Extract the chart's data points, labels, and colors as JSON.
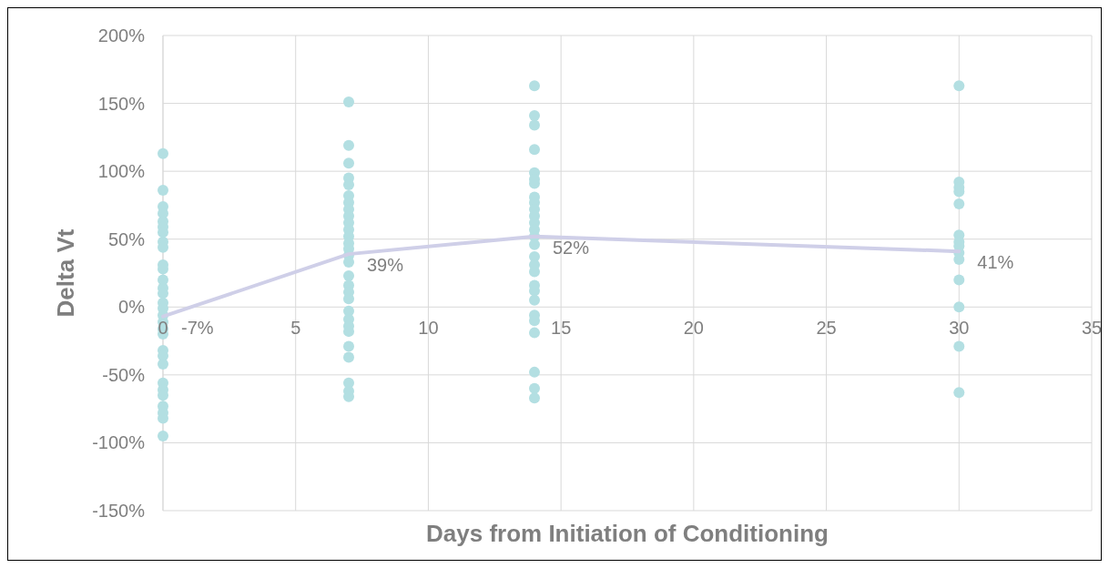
{
  "chart_data": {
    "type": "scatter",
    "xlabel": "Days from Initiation of Conditioning",
    "ylabel": "Delta Vt",
    "xlim": [
      0,
      35
    ],
    "xticks": [
      0,
      5,
      10,
      15,
      20,
      25,
      30,
      35
    ],
    "ylim": [
      -150,
      200
    ],
    "yticks": [
      {
        "value": -150,
        "label": "-150%"
      },
      {
        "value": -100,
        "label": "-100%"
      },
      {
        "value": -50,
        "label": "-50%"
      },
      {
        "value": 0,
        "label": "0%"
      },
      {
        "value": 50,
        "label": "50%"
      },
      {
        "value": 100,
        "label": "100%"
      },
      {
        "value": 150,
        "label": "150%"
      },
      {
        "value": 200,
        "label": "200%"
      }
    ],
    "grid": true,
    "series": [
      {
        "color": "#b3dfe2",
        "marker": "circle",
        "x": [
          0,
          0,
          0,
          0,
          0,
          0,
          0,
          0,
          0,
          0,
          0,
          0,
          0,
          0,
          0,
          0,
          0,
          0,
          0,
          0,
          0,
          0,
          0,
          0,
          0,
          0,
          0,
          0,
          0,
          0,
          7,
          7,
          7,
          7,
          7,
          7,
          7,
          7,
          7,
          7,
          7,
          7,
          7,
          7,
          7,
          7,
          7,
          7,
          7,
          7,
          7,
          7,
          7,
          7,
          7,
          7,
          7,
          7,
          7,
          14,
          14,
          14,
          14,
          14,
          14,
          14,
          14,
          14,
          14,
          14,
          14,
          14,
          14,
          14,
          14,
          14,
          14,
          14,
          14,
          14,
          14,
          14,
          14,
          14,
          14,
          14,
          30,
          30,
          30,
          30,
          30,
          30,
          30,
          30,
          30,
          30,
          30,
          30,
          30,
          30
        ],
        "values": [
          113,
          86,
          74,
          69,
          63,
          59,
          55,
          48,
          44,
          31,
          28,
          20,
          14,
          10,
          3,
          -1,
          -6,
          -11,
          -16,
          -20,
          -32,
          -36,
          -42,
          -56,
          -61,
          -65,
          -73,
          -78,
          -82,
          -95,
          151,
          119,
          106,
          95,
          90,
          82,
          77,
          72,
          67,
          62,
          57,
          52,
          47,
          43,
          38,
          33,
          23,
          16,
          11,
          6,
          -3,
          -9,
          -14,
          -18,
          -29,
          -37,
          -56,
          -62,
          -66,
          163,
          141,
          134,
          116,
          99,
          94,
          91,
          81,
          77,
          72,
          67,
          62,
          57,
          52,
          46,
          37,
          31,
          26,
          16,
          12,
          5,
          -6,
          -10,
          -19,
          -48,
          -60,
          -67,
          163,
          92,
          88,
          85,
          76,
          53,
          48,
          45,
          40,
          35,
          20,
          0,
          -29,
          -63
        ]
      },
      {
        "type": "line",
        "color": "#cfcfe8",
        "marker": "none",
        "line_style": "solid",
        "x": [
          0,
          7,
          14,
          30
        ],
        "values": [
          -7,
          39,
          52,
          41
        ],
        "value_labels": [
          "-7%",
          "39%",
          "52%",
          "41%"
        ]
      }
    ]
  }
}
